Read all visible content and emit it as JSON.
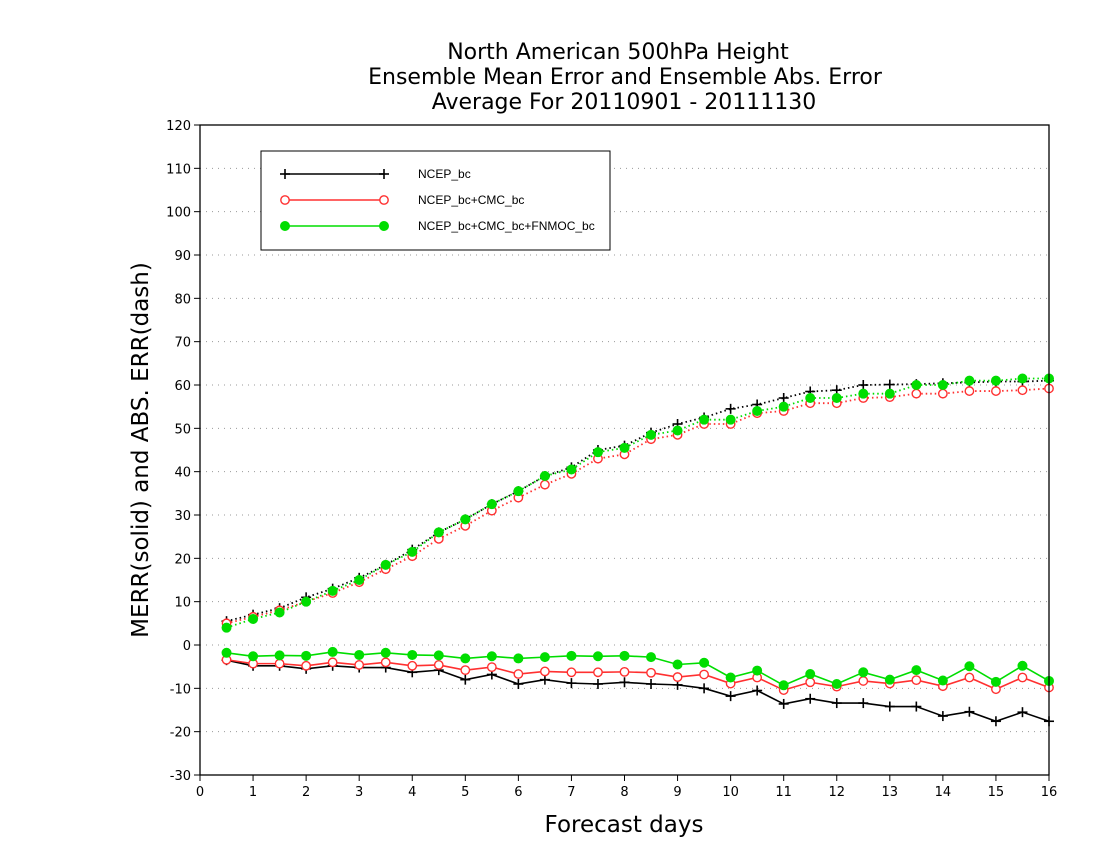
{
  "chart_data": {
    "type": "line",
    "title_lines": [
      "North American 500hPa Height",
      "Ensemble Mean Error and Ensemble Abs. Error",
      "Average For 20110901 - 20111130"
    ],
    "xlabel": "Forecast days",
    "ylabel": "MERR(solid) and ABS. ERR(dash)",
    "xlim": [
      0,
      16
    ],
    "ylim": [
      -30,
      120
    ],
    "x_ticks": [
      "0",
      "1",
      "2",
      "3",
      "4",
      "5",
      "6",
      "7",
      "8",
      "9",
      "10",
      "11",
      "12",
      "13",
      "14",
      "15",
      "16"
    ],
    "y_ticks": [
      "-30",
      "-20",
      "-10",
      "0",
      "10",
      "20",
      "30",
      "40",
      "50",
      "60",
      "70",
      "80",
      "90",
      "100",
      "110",
      "120"
    ],
    "grid": "horizontal-dotted",
    "legend_position": "top-left",
    "x": [
      0.5,
      1,
      1.5,
      2,
      2.5,
      3,
      3.5,
      4,
      4.5,
      5,
      5.5,
      6,
      6.5,
      7,
      7.5,
      8,
      8.5,
      9,
      9.5,
      10,
      10.5,
      11,
      11.5,
      12,
      12.5,
      13,
      13.5,
      14,
      14.5,
      15,
      15.5,
      16
    ],
    "series": [
      {
        "name": "NCEP_bc",
        "color": "#000000",
        "marker": "plus",
        "merr": [
          -3.5,
          -4.8,
          -4.8,
          -5.5,
          -4.8,
          -5.2,
          -5.2,
          -6.3,
          -5.8,
          -8.0,
          -6.8,
          -9.0,
          -8.0,
          -8.8,
          -9.0,
          -8.6,
          -9.0,
          -9.2,
          -10.0,
          -11.8,
          -10.5,
          -13.6,
          -12.4,
          -13.4,
          -13.4,
          -14.2,
          -14.2,
          -16.4,
          -15.4,
          -17.6,
          -15.5,
          -17.6
        ],
        "abs_err": [
          5.5,
          7.0,
          8.5,
          11.0,
          13.0,
          15.5,
          18.5,
          22.0,
          26.0,
          29.0,
          32.5,
          35.5,
          39.0,
          41.0,
          45.0,
          46.0,
          49.0,
          51.0,
          52.5,
          54.5,
          55.5,
          57.0,
          58.5,
          58.8,
          60.0,
          60.1,
          60.2,
          60.4,
          60.6,
          60.8,
          60.8,
          61.0
        ]
      },
      {
        "name": "NCEP_bc+CMC_bc",
        "color": "#ff3030",
        "marker": "open-circle",
        "merr": [
          -3.4,
          -4.3,
          -4.3,
          -4.8,
          -4.0,
          -4.6,
          -4.0,
          -4.8,
          -4.6,
          -5.8,
          -5.1,
          -6.7,
          -6.1,
          -6.3,
          -6.3,
          -6.2,
          -6.4,
          -7.4,
          -6.8,
          -8.9,
          -7.5,
          -10.4,
          -8.6,
          -9.6,
          -8.3,
          -8.9,
          -8.1,
          -9.5,
          -7.5,
          -10.2,
          -7.5,
          -9.8
        ],
        "abs_err": [
          5.0,
          6.5,
          8.0,
          10.0,
          12.0,
          14.5,
          17.5,
          20.5,
          24.5,
          27.5,
          31.0,
          34.0,
          37.0,
          39.5,
          43.0,
          44.0,
          47.5,
          48.5,
          51.0,
          51.0,
          53.5,
          54.0,
          55.8,
          55.8,
          57.0,
          57.2,
          58.0,
          58.0,
          58.6,
          58.6,
          58.8,
          59.2
        ]
      },
      {
        "name": "NCEP_bc+CMC_bc+FNMOC_bc",
        "color": "#00dd00",
        "marker": "filled-circle",
        "merr": [
          -1.8,
          -2.6,
          -2.4,
          -2.5,
          -1.6,
          -2.3,
          -1.8,
          -2.3,
          -2.4,
          -3.1,
          -2.6,
          -3.1,
          -2.8,
          -2.5,
          -2.6,
          -2.5,
          -2.8,
          -4.5,
          -4.1,
          -7.5,
          -5.9,
          -9.3,
          -6.7,
          -9.0,
          -6.3,
          -8.0,
          -5.8,
          -8.2,
          -4.9,
          -8.5,
          -4.8,
          -8.3
        ],
        "abs_err": [
          4.0,
          6.0,
          7.5,
          10.0,
          12.5,
          15.0,
          18.5,
          21.5,
          26.0,
          29.0,
          32.5,
          35.5,
          39.0,
          40.5,
          44.5,
          45.5,
          48.5,
          49.5,
          52.0,
          52.0,
          54.0,
          55.0,
          57.0,
          57.0,
          58.0,
          58.0,
          60.0,
          60.0,
          61.0,
          61.0,
          61.5,
          61.5
        ]
      }
    ]
  }
}
